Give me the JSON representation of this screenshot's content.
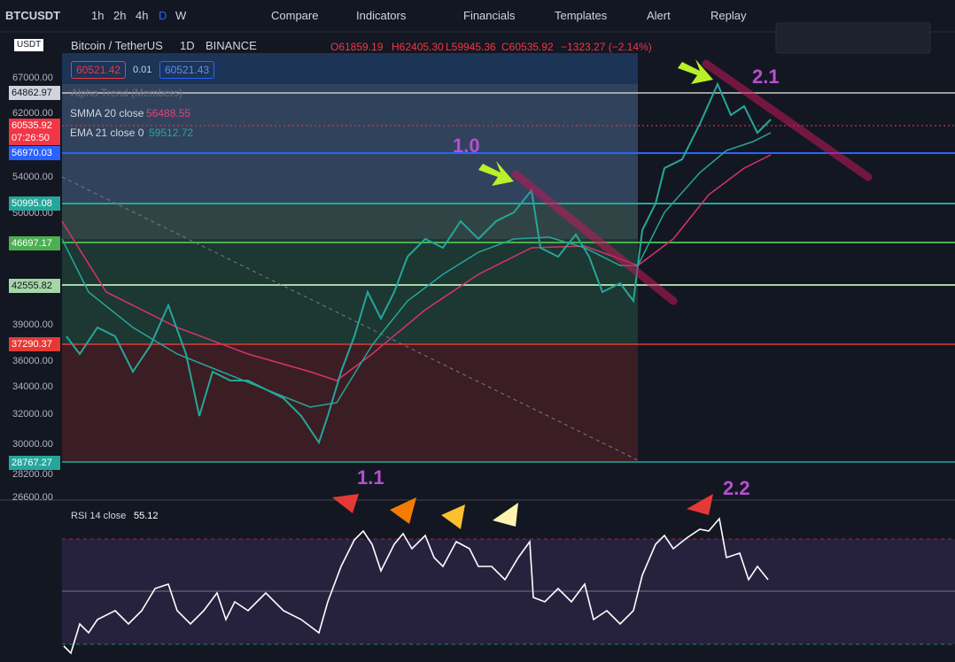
{
  "toolbar": {
    "symbol": "BTCUSDT",
    "intervals": [
      "1h",
      "2h",
      "4h",
      "D",
      "W"
    ],
    "buttons": [
      "Compare",
      "Indicators",
      "Financials",
      "Templates",
      "Alert",
      "Replay"
    ]
  },
  "header": {
    "currency": "USDT",
    "title": "Bitcoin / TetherUS",
    "interval": "1D",
    "exchange": "BINANCE",
    "open": "O61859.19",
    "high": "H62405.30",
    "low": "L59945.36",
    "close": "C60535.92",
    "change": "−1323.27 (−2.14%)",
    "bid": "60521.42",
    "spread": "0.01",
    "ask": "60521.43"
  },
  "indicators": {
    "alpha": "Alpha Trend (Members)",
    "smma_label": "SMMA 20 close",
    "smma_value": "56488.55",
    "ema_label": "EMA 21 close 0",
    "ema_value": "59512.72",
    "rsi_label": "RSI 14 close",
    "rsi_value": "55.12"
  },
  "price_axis": [
    "67000.00",
    "62000.00",
    "54000.00",
    "50000.00",
    "39000.00",
    "36000.00",
    "34000.00",
    "32000.00",
    "30000.00",
    "28200.00",
    "26600.00"
  ],
  "price_tags": [
    "64862.97",
    "60535.92",
    "07:26:50",
    "56970.03",
    "50995.08",
    "46697.17",
    "42555.82",
    "37290.37",
    "28767.27"
  ],
  "annotations": [
    "1.0",
    "1.1",
    "2.1",
    "2.2"
  ]
}
